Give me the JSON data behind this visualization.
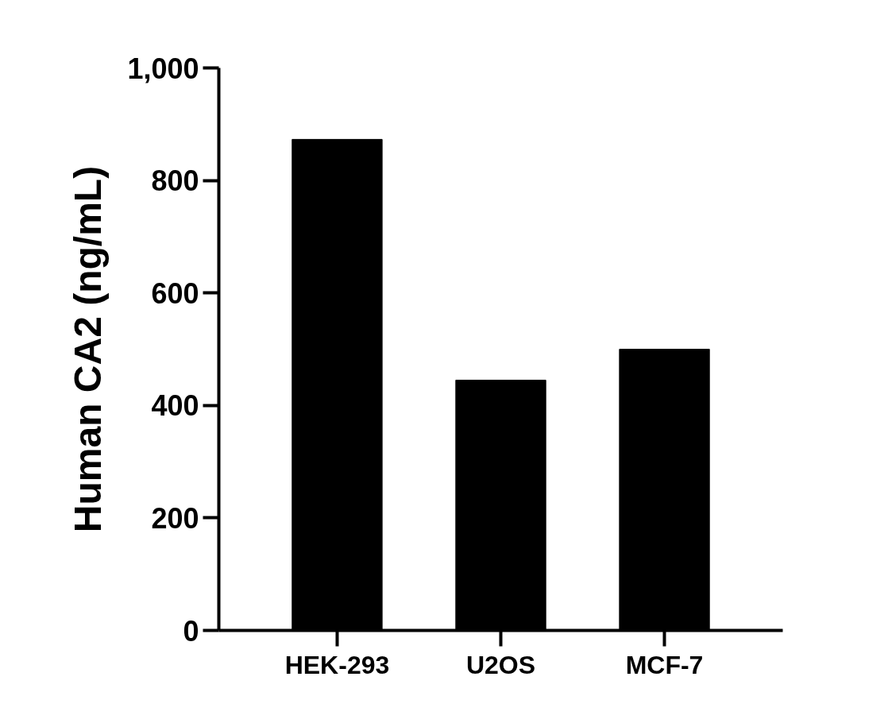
{
  "chart_data": {
    "type": "bar",
    "ylabel": "Human CA2 (ng/mL)",
    "categories": [
      "HEK-293",
      "U2OS",
      "MCF-7"
    ],
    "values": [
      873,
      445,
      500
    ],
    "color": "#000000",
    "ylim": [
      0,
      1000
    ],
    "yticks": [
      0,
      200,
      400,
      600,
      800,
      {
        "value": 1000,
        "label": "1,000"
      }
    ]
  }
}
